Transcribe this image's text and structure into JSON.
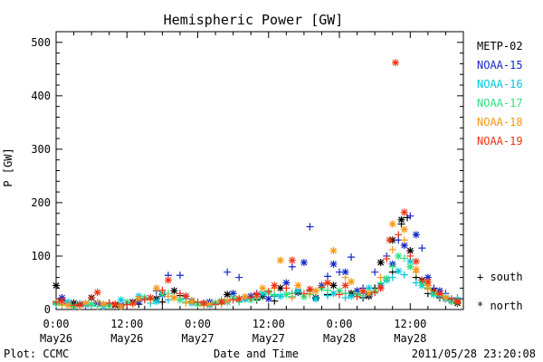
{
  "chart_data": {
    "type": "scatter",
    "title": "Hemispheric Power [GW]",
    "ylabel": "P [GW]",
    "xlabel": "Date and Time",
    "ylim": [
      0,
      520
    ],
    "xlim": [
      0,
      69
    ],
    "x_unit": "hours since 2011-05-26 00:00 UT",
    "y_ticks": [
      0,
      100,
      200,
      300,
      400,
      500
    ],
    "x_ticks": [
      {
        "x": 0,
        "l1": "0:00",
        "l2": "May26"
      },
      {
        "x": 12,
        "l1": "12:00",
        "l2": "May26"
      },
      {
        "x": 24,
        "l1": "0:00",
        "l2": "May27"
      },
      {
        "x": 36,
        "l1": "12:00",
        "l2": "May27"
      },
      {
        "x": 48,
        "l1": "0:00",
        "l2": "May28"
      },
      {
        "x": 60,
        "l1": "12:00",
        "l2": "May28"
      }
    ],
    "grid": false,
    "legend_position": "right",
    "series": [
      {
        "name": "METP-02",
        "color": "#000000",
        "south": [
          [
            1,
            18
          ],
          [
            4,
            8
          ],
          [
            9,
            12
          ],
          [
            14,
            10
          ],
          [
            18,
            14
          ],
          [
            21,
            26
          ],
          [
            25,
            11
          ],
          [
            28,
            12
          ],
          [
            31,
            20
          ],
          [
            34,
            18
          ],
          [
            37,
            16
          ],
          [
            40,
            30
          ],
          [
            43,
            35
          ],
          [
            46,
            28
          ],
          [
            49,
            30
          ],
          [
            52,
            22
          ],
          [
            54,
            40
          ],
          [
            57,
            70
          ],
          [
            58.5,
            160
          ],
          [
            59.5,
            172
          ],
          [
            61,
            60
          ],
          [
            63,
            30
          ],
          [
            65,
            22
          ],
          [
            67,
            15
          ]
        ],
        "north": [
          [
            0,
            45
          ],
          [
            3,
            12
          ],
          [
            6,
            22
          ],
          [
            10,
            8
          ],
          [
            13,
            14
          ],
          [
            17,
            20
          ],
          [
            20,
            35
          ],
          [
            23,
            16
          ],
          [
            26,
            10
          ],
          [
            29,
            28
          ],
          [
            32,
            20
          ],
          [
            35,
            25
          ],
          [
            38,
            40
          ],
          [
            41,
            32
          ],
          [
            44,
            22
          ],
          [
            47,
            45
          ],
          [
            50,
            30
          ],
          [
            53,
            25
          ],
          [
            55,
            88
          ],
          [
            57,
            130
          ],
          [
            58.5,
            168
          ],
          [
            60,
            110
          ],
          [
            62,
            55
          ],
          [
            64,
            35
          ],
          [
            66,
            20
          ],
          [
            68,
            12
          ]
        ]
      },
      {
        "name": "NOAA-15",
        "color": "#1428c8",
        "south": [
          [
            2,
            12
          ],
          [
            5,
            7
          ],
          [
            8,
            9
          ],
          [
            12,
            10
          ],
          [
            15,
            20
          ],
          [
            17,
            35
          ],
          [
            19,
            64
          ],
          [
            21,
            64
          ],
          [
            25,
            12
          ],
          [
            29,
            70
          ],
          [
            31,
            60
          ],
          [
            34,
            30
          ],
          [
            37,
            25
          ],
          [
            40,
            80
          ],
          [
            43,
            155
          ],
          [
            46,
            62
          ],
          [
            48,
            70
          ],
          [
            50,
            98
          ],
          [
            52,
            40
          ],
          [
            54,
            70
          ],
          [
            56,
            100
          ],
          [
            58,
            130
          ],
          [
            60,
            175
          ],
          [
            62,
            115
          ],
          [
            64,
            40
          ],
          [
            66,
            30
          ],
          [
            68,
            20
          ]
        ],
        "north": [
          [
            1,
            22
          ],
          [
            4,
            10
          ],
          [
            7,
            12
          ],
          [
            11,
            8
          ],
          [
            14,
            15
          ],
          [
            18,
            28
          ],
          [
            22,
            25
          ],
          [
            26,
            14
          ],
          [
            30,
            30
          ],
          [
            33,
            25
          ],
          [
            36,
            20
          ],
          [
            39,
            50
          ],
          [
            42,
            88
          ],
          [
            45,
            45
          ],
          [
            47,
            85
          ],
          [
            49,
            70
          ],
          [
            51,
            35
          ],
          [
            53,
            28
          ],
          [
            55,
            45
          ],
          [
            57,
            85
          ],
          [
            59,
            120
          ],
          [
            61,
            140
          ],
          [
            63,
            60
          ],
          [
            65,
            35
          ],
          [
            67,
            18
          ]
        ]
      },
      {
        "name": "NOAA-16",
        "color": "#00c8e0",
        "south": [
          [
            0,
            10
          ],
          [
            3,
            5
          ],
          [
            6,
            7
          ],
          [
            9,
            10
          ],
          [
            13,
            14
          ],
          [
            16,
            12
          ],
          [
            19,
            18
          ],
          [
            22,
            20
          ],
          [
            25,
            12
          ],
          [
            28,
            10
          ],
          [
            31,
            15
          ],
          [
            34,
            22
          ],
          [
            37,
            28
          ],
          [
            40,
            24
          ],
          [
            43,
            30
          ],
          [
            46,
            26
          ],
          [
            49,
            22
          ],
          [
            52,
            30
          ],
          [
            55,
            45
          ],
          [
            57,
            60
          ],
          [
            59,
            65
          ],
          [
            61,
            50
          ],
          [
            63,
            38
          ],
          [
            65,
            25
          ],
          [
            68,
            22
          ]
        ],
        "north": [
          [
            2,
            14
          ],
          [
            5,
            9
          ],
          [
            8,
            6
          ],
          [
            11,
            18
          ],
          [
            14,
            25
          ],
          [
            17,
            15
          ],
          [
            20,
            22
          ],
          [
            23,
            12
          ],
          [
            26,
            8
          ],
          [
            29,
            14
          ],
          [
            32,
            20
          ],
          [
            35,
            30
          ],
          [
            38,
            25
          ],
          [
            41,
            35
          ],
          [
            44,
            20
          ],
          [
            47,
            30
          ],
          [
            50,
            25
          ],
          [
            53,
            40
          ],
          [
            56,
            55
          ],
          [
            58,
            72
          ],
          [
            60,
            90
          ],
          [
            62,
            45
          ],
          [
            64,
            28
          ],
          [
            66,
            20
          ],
          [
            68,
            15
          ]
        ]
      },
      {
        "name": "NOAA-17",
        "color": "#32e080",
        "south": [
          [
            1,
            8
          ],
          [
            4,
            12
          ],
          [
            7,
            6
          ],
          [
            10,
            9
          ],
          [
            13,
            12
          ],
          [
            16,
            20
          ],
          [
            19,
            30
          ],
          [
            22,
            14
          ],
          [
            25,
            10
          ],
          [
            28,
            18
          ],
          [
            31,
            14
          ],
          [
            34,
            20
          ],
          [
            37,
            26
          ],
          [
            40,
            30
          ],
          [
            43,
            28
          ],
          [
            46,
            36
          ],
          [
            49,
            30
          ],
          [
            52,
            26
          ],
          [
            55,
            50
          ],
          [
            57,
            80
          ],
          [
            59,
            96
          ],
          [
            61,
            70
          ],
          [
            63,
            40
          ],
          [
            66,
            25
          ],
          [
            68,
            18
          ]
        ],
        "north": [
          [
            0,
            12
          ],
          [
            3,
            6
          ],
          [
            6,
            10
          ],
          [
            9,
            7
          ],
          [
            12,
            14
          ],
          [
            15,
            22
          ],
          [
            18,
            30
          ],
          [
            21,
            18
          ],
          [
            24,
            10
          ],
          [
            27,
            12
          ],
          [
            30,
            22
          ],
          [
            33,
            18
          ],
          [
            36,
            32
          ],
          [
            39,
            28
          ],
          [
            42,
            24
          ],
          [
            45,
            40
          ],
          [
            48,
            35
          ],
          [
            51,
            28
          ],
          [
            54,
            34
          ],
          [
            56,
            58
          ],
          [
            58,
            100
          ],
          [
            60,
            80
          ],
          [
            62,
            50
          ],
          [
            64,
            30
          ],
          [
            67,
            15
          ]
        ]
      },
      {
        "name": "NOAA-18",
        "color": "#ff9614",
        "south": [
          [
            1,
            10
          ],
          [
            4,
            6
          ],
          [
            7,
            14
          ],
          [
            10,
            8
          ],
          [
            13,
            10
          ],
          [
            16,
            18
          ],
          [
            19,
            25
          ],
          [
            22,
            12
          ],
          [
            25,
            8
          ],
          [
            28,
            10
          ],
          [
            31,
            20
          ],
          [
            34,
            25
          ],
          [
            37,
            40
          ],
          [
            40,
            22
          ],
          [
            43,
            30
          ],
          [
            46,
            48
          ],
          [
            49,
            60
          ],
          [
            52,
            35
          ],
          [
            55,
            60
          ],
          [
            57,
            112
          ],
          [
            59,
            130
          ],
          [
            61,
            70
          ],
          [
            63,
            38
          ],
          [
            65,
            28
          ],
          [
            68,
            18
          ]
        ],
        "north": [
          [
            2,
            8
          ],
          [
            5,
            12
          ],
          [
            8,
            10
          ],
          [
            11,
            6
          ],
          [
            14,
            20
          ],
          [
            17,
            40
          ],
          [
            20,
            22
          ],
          [
            23,
            15
          ],
          [
            26,
            10
          ],
          [
            29,
            16
          ],
          [
            32,
            24
          ],
          [
            35,
            40
          ],
          [
            38,
            92
          ],
          [
            41,
            45
          ],
          [
            44,
            35
          ],
          [
            47,
            110
          ],
          [
            50,
            52
          ],
          [
            53,
            30
          ],
          [
            55,
            40
          ],
          [
            57,
            160
          ],
          [
            59,
            150
          ],
          [
            61,
            75
          ],
          [
            63,
            45
          ],
          [
            66,
            22
          ],
          [
            68,
            14
          ]
        ]
      },
      {
        "name": "NOAA-19",
        "color": "#f03214",
        "south": [
          [
            0,
            14
          ],
          [
            3,
            8
          ],
          [
            6,
            22
          ],
          [
            9,
            12
          ],
          [
            12,
            9
          ],
          [
            15,
            18
          ],
          [
            18,
            36
          ],
          [
            21,
            30
          ],
          [
            24,
            14
          ],
          [
            27,
            10
          ],
          [
            30,
            18
          ],
          [
            33,
            22
          ],
          [
            36,
            34
          ],
          [
            39,
            40
          ],
          [
            42,
            30
          ],
          [
            45,
            42
          ],
          [
            48,
            28
          ],
          [
            51,
            24
          ],
          [
            54,
            32
          ],
          [
            56,
            95
          ],
          [
            58,
            140
          ],
          [
            60,
            100
          ],
          [
            62,
            55
          ],
          [
            64,
            35
          ],
          [
            67,
            20
          ]
        ],
        "north": [
          [
            1,
            16
          ],
          [
            4,
            9
          ],
          [
            7,
            32
          ],
          [
            10,
            10
          ],
          [
            13,
            12
          ],
          [
            16,
            22
          ],
          [
            19,
            55
          ],
          [
            22,
            25
          ],
          [
            25,
            12
          ],
          [
            28,
            15
          ],
          [
            31,
            20
          ],
          [
            34,
            28
          ],
          [
            37,
            45
          ],
          [
            40,
            92
          ],
          [
            43,
            38
          ],
          [
            46,
            50
          ],
          [
            49,
            45
          ],
          [
            52,
            34
          ],
          [
            55,
            40
          ],
          [
            56.5,
            130
          ],
          [
            57.5,
            462
          ],
          [
            59,
            182
          ],
          [
            61,
            90
          ],
          [
            63,
            52
          ],
          [
            65,
            30
          ],
          [
            68,
            15
          ]
        ]
      }
    ],
    "symbols": {
      "south": "+ south",
      "north": "* north"
    }
  },
  "footer": {
    "plot_credit": "Plot: CCMC",
    "timestamp": "2011/05/28 23:20:08"
  }
}
